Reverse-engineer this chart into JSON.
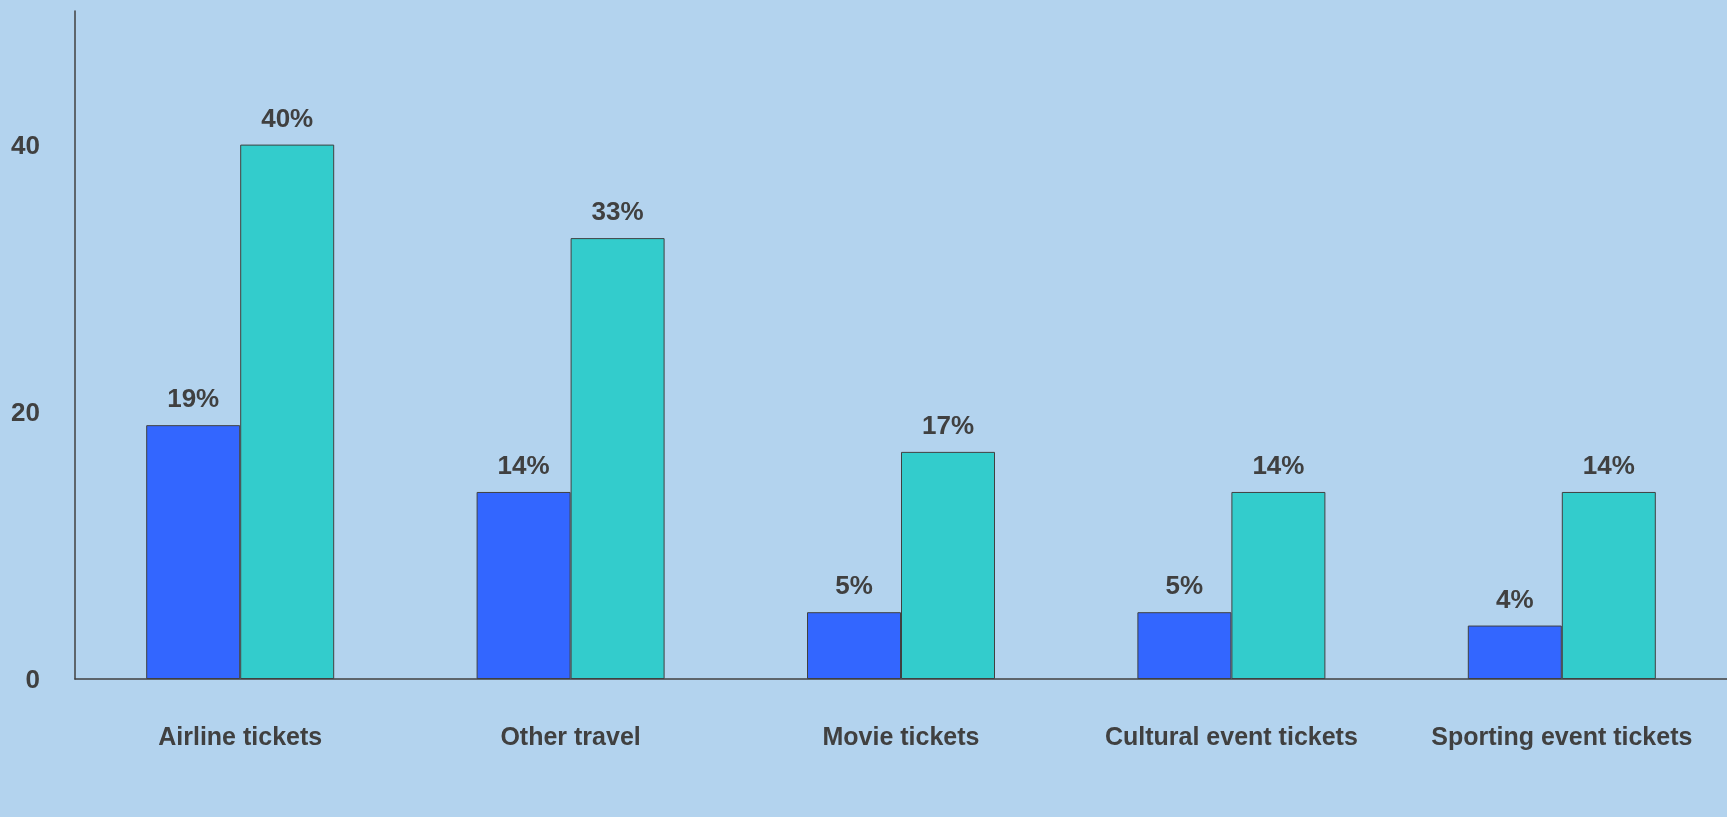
{
  "chart_data": {
    "type": "bar",
    "categories": [
      "Airline tickets",
      "Other travel",
      "Movie tickets",
      "Cultural event tickets",
      "Sporting event tickets"
    ],
    "series": [
      {
        "color": "#3366ff",
        "values": [
          19,
          14,
          5,
          5,
          4
        ],
        "value_labels": [
          "19%",
          "14%",
          "5%",
          "5%",
          "4%"
        ]
      },
      {
        "color": "#33cccc",
        "values": [
          40,
          33,
          17,
          14,
          14
        ],
        "value_labels": [
          "40%",
          "33%",
          "17%",
          "14%",
          "14%"
        ]
      }
    ],
    "ylim": [
      0,
      50
    ],
    "yticks": [
      0,
      20,
      40
    ],
    "grid": false
  }
}
